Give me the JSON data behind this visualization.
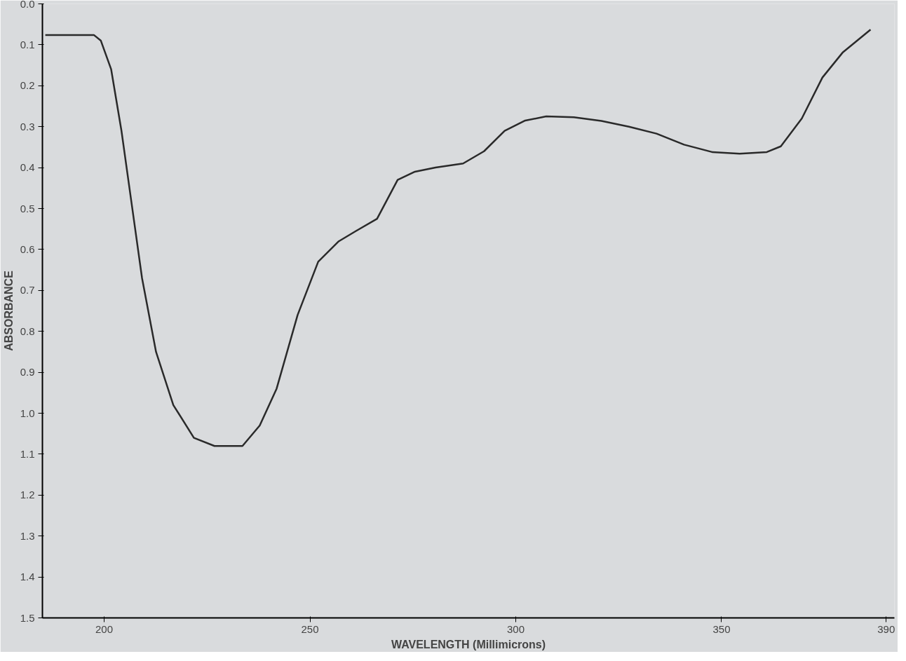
{
  "chart_data": {
    "type": "line",
    "xlabel": "WAVELENGTH (Millimicrons)",
    "ylabel": "ABSORBANCE",
    "x": [
      185.7,
      197.5,
      199.2,
      201.7,
      204.2,
      206.7,
      209.2,
      212.6,
      216.8,
      221.8,
      226.8,
      233.6,
      237.8,
      241.9,
      247,
      252,
      257,
      262,
      266.3,
      271.3,
      275.5,
      280.5,
      287.2,
      292.3,
      297.3,
      302.3,
      307.4,
      314.1,
      320.8,
      327.5,
      334.2,
      340.9,
      347.7,
      354.4,
      361,
      364.4,
      369.5,
      374.5,
      379.5,
      386.2
    ],
    "series": [
      {
        "color": "#2a2a2a",
        "values": [
          0.076,
          0.076,
          0.09,
          0.16,
          0.31,
          0.49,
          0.67,
          0.85,
          0.98,
          1.06,
          1.08,
          1.08,
          1.03,
          0.94,
          0.76,
          0.63,
          0.58,
          0.55,
          0.525,
          0.43,
          0.41,
          0.4,
          0.39,
          0.36,
          0.31,
          0.285,
          0.275,
          0.277,
          0.286,
          0.3,
          0.317,
          0.344,
          0.362,
          0.366,
          0.362,
          0.348,
          0.28,
          0.18,
          0.118,
          0.063
        ]
      }
    ],
    "xlim": [
      185,
      392
    ],
    "xticks": [
      200,
      250,
      300,
      350,
      390
    ],
    "ylim": [
      1.5,
      0.0
    ],
    "yticks": [
      {
        "value": 0,
        "label": "0.0"
      },
      0.1,
      0.2,
      0.3,
      0.4,
      0.5,
      0.6,
      0.7,
      0.8,
      0.9,
      {
        "value": 1,
        "label": "1.0"
      },
      1.1,
      1.2,
      1.3,
      1.4,
      1.5
    ],
    "grid": false,
    "marker": "none",
    "line_style": "solid"
  }
}
